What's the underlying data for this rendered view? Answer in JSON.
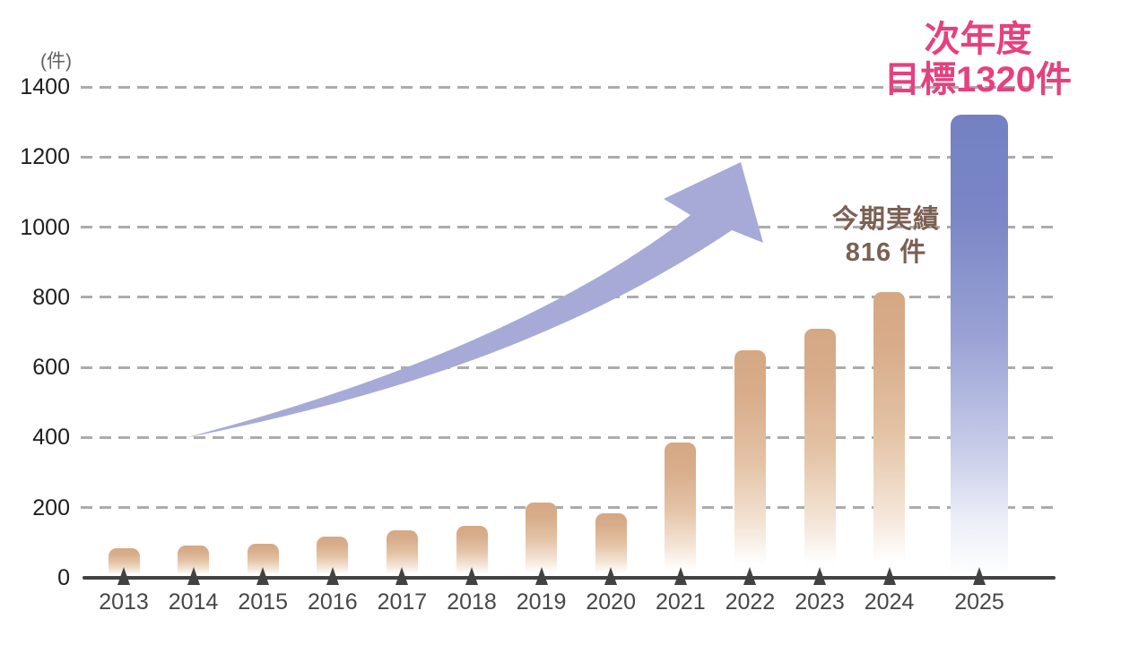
{
  "chart_data": {
    "type": "bar",
    "title": "",
    "ylabel_unit": "(件)",
    "categories": [
      "2013",
      "2014",
      "2015",
      "2016",
      "2017",
      "2018",
      "2019",
      "2020",
      "2021",
      "2022",
      "2023",
      "2024",
      "2025"
    ],
    "values": [
      85,
      93,
      97,
      118,
      135,
      148,
      215,
      185,
      385,
      648,
      710,
      816,
      1320
    ],
    "highlight_category": "2025",
    "ylim": [
      0,
      1400
    ],
    "yticks": [
      0,
      200,
      400,
      600,
      800,
      1000,
      1200,
      1400
    ],
    "grid": "horizontal dashed",
    "legend": "none",
    "bar_color_top": "#d5a884",
    "highlight_bar_color_top": "#7381c2",
    "arrow_color": "#a7aad7",
    "axis_color": "#424242",
    "annotations": [
      {
        "id": "target",
        "lines": [
          "次年度",
          "目標1320件"
        ],
        "value": 1320,
        "color": "#e5417e"
      },
      {
        "id": "current",
        "lines": [
          "今期実績",
          "816 件"
        ],
        "value": 816,
        "color": "#7b6054"
      }
    ]
  }
}
